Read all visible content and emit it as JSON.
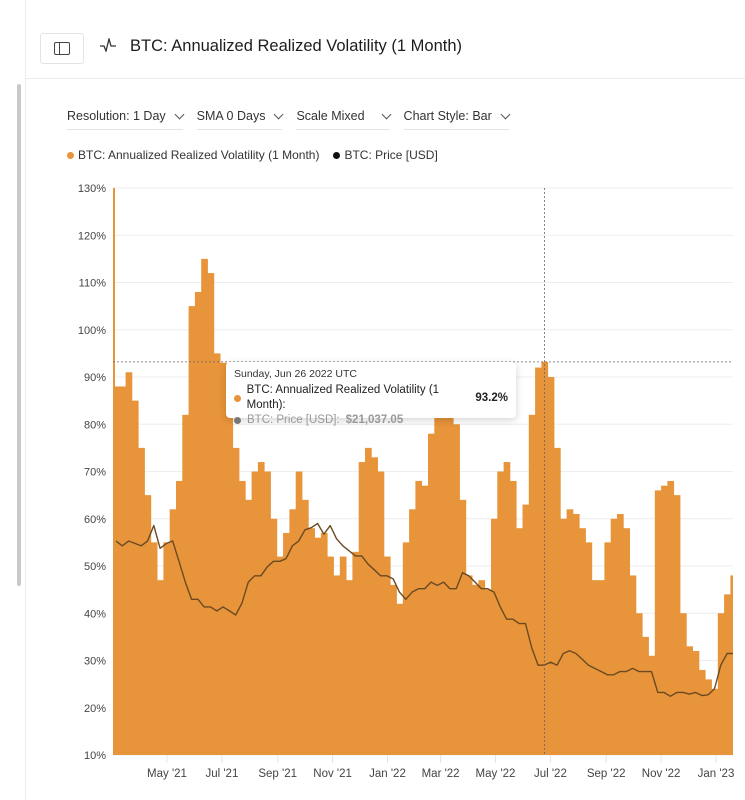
{
  "header": {
    "title": "BTC: Annualized Realized Volatility (1 Month)",
    "sidebar_toggle_icon": "sidebar-icon",
    "chart_icon": "pulse-icon"
  },
  "controls": [
    {
      "label": "Resolution: 1 Day"
    },
    {
      "label": "SMA 0 Days"
    },
    {
      "label": "Scale Mixed"
    },
    {
      "label": "Chart Style: Bar"
    }
  ],
  "legend": [
    {
      "label": "BTC: Annualized Realized Volatility (1 Month)",
      "color": "#e8943a"
    },
    {
      "label": "BTC: Price [USD]",
      "color": "#111111"
    }
  ],
  "tooltip": {
    "date": "Sunday, Jun 26 2022 UTC",
    "vol_label": "BTC: Annualized Realized Volatility (1 Month):",
    "vol_value": "93.2%",
    "price_label": "BTC: Price [USD]:",
    "price_value": "$21,037.05"
  },
  "chart_data": {
    "type": "bar",
    "title": "BTC: Annualized Realized Volatility (1 Month)",
    "start_date": "2021-03-02",
    "interval_days": 7,
    "ylim": [
      10,
      130
    ],
    "y_ticks": [
      "10%",
      "20%",
      "30%",
      "40%",
      "50%",
      "60%",
      "70%",
      "80%",
      "90%",
      "100%",
      "110%",
      "120%",
      "130%"
    ],
    "x_ticks": [
      "May '21",
      "Jul '21",
      "Sep '21",
      "Nov '21",
      "Jan '22",
      "Mar '22",
      "May '22",
      "Jul '22",
      "Sep '22",
      "Nov '22",
      "Jan '23"
    ],
    "price_scale": "log",
    "grid": true,
    "series": [
      {
        "name": "BTC: Annualized Realized Volatility (1 Month)",
        "unit": "%",
        "color": "#e8943a",
        "values": [
          130,
          88,
          91,
          85,
          75,
          65,
          55,
          47,
          55,
          62,
          68,
          82,
          105,
          108,
          115,
          112,
          95,
          93,
          88,
          75,
          68,
          64,
          70,
          72,
          70,
          60,
          52,
          57,
          62,
          70,
          64,
          58,
          56,
          57,
          52,
          48,
          52,
          47,
          53,
          72,
          75,
          73,
          70,
          52,
          46,
          42,
          55,
          62,
          68,
          67,
          78,
          83,
          85,
          84,
          80,
          64,
          48,
          46,
          47,
          45,
          60,
          70,
          72,
          68,
          58,
          63,
          82,
          92,
          93.2,
          90,
          75,
          60,
          62,
          61,
          58,
          55,
          47,
          47,
          55,
          60,
          61,
          58,
          48,
          40,
          35,
          31,
          66,
          67,
          68,
          65,
          40,
          33,
          32,
          28,
          26,
          24,
          40,
          44,
          48
        ]
      },
      {
        "name": "BTC: Price [USD]",
        "unit": "USD",
        "color": "#6b4a22",
        "values": [
          55000,
          53000,
          55000,
          54000,
          53000,
          55000,
          62000,
          52000,
          54000,
          55000,
          47000,
          40000,
          35000,
          35000,
          33000,
          33000,
          32000,
          33000,
          32000,
          31000,
          34000,
          40000,
          42000,
          42000,
          45000,
          47000,
          47000,
          48000,
          53000,
          55000,
          60000,
          61000,
          63000,
          58000,
          62000,
          56000,
          53000,
          51000,
          49000,
          49000,
          46000,
          44000,
          42000,
          42000,
          41000,
          37000,
          35000,
          37000,
          38000,
          38000,
          40000,
          39000,
          40000,
          38000,
          38000,
          43000,
          42000,
          40000,
          38000,
          38000,
          37000,
          33000,
          30000,
          30000,
          29000,
          29000,
          24000,
          21000,
          21037.05,
          21500,
          21000,
          23000,
          23500,
          23000,
          22000,
          21000,
          20500,
          20000,
          19500,
          19500,
          20000,
          20000,
          20500,
          20000,
          20000,
          20000,
          17000,
          17000,
          16500,
          17000,
          17000,
          16800,
          17000,
          16600,
          16700,
          17500,
          21000,
          23000,
          23000
        ]
      }
    ],
    "highlight_index": 68
  }
}
